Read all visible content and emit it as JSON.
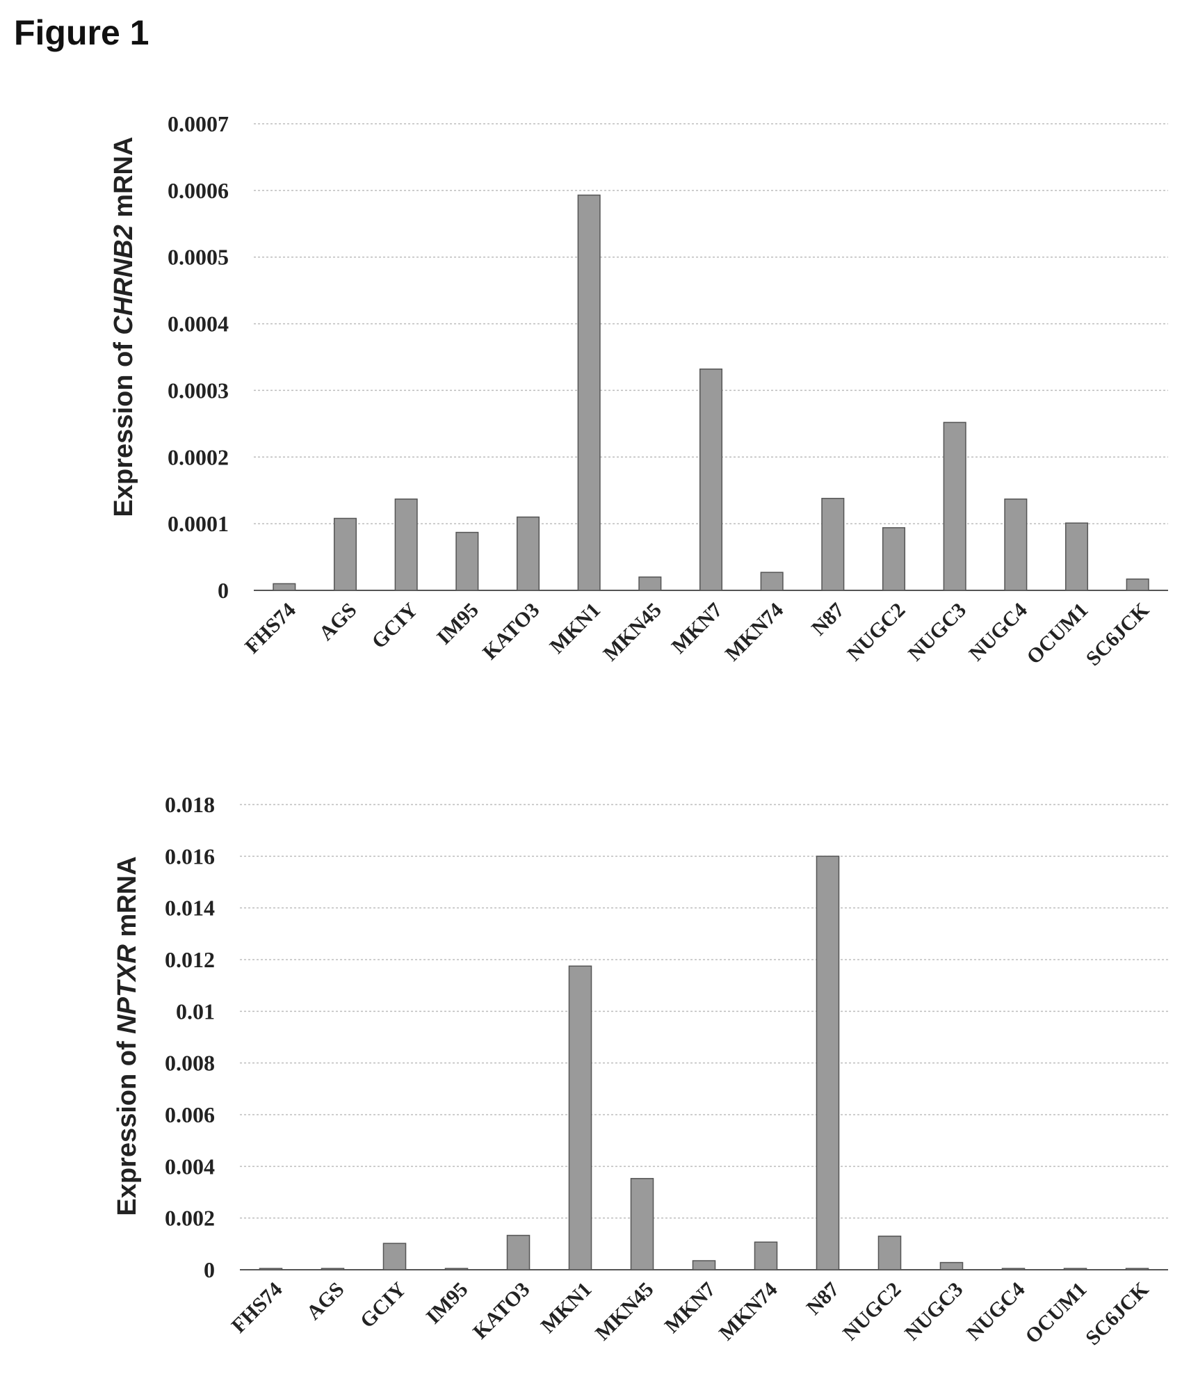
{
  "figure_title": "Figure 1",
  "chart_data": [
    {
      "type": "bar",
      "ylabel_prefix": "Expression of ",
      "ylabel_gene": "CHRNB2",
      "ylabel_suffix": " mRNA",
      "ylim": [
        0,
        0.0007
      ],
      "yticks": [
        "0",
        "0.0001",
        "0.0002",
        "0.0003",
        "0.0004",
        "0.0005",
        "0.0006",
        "0.0007"
      ],
      "grid": true,
      "categories": [
        "FHS74",
        "AGS",
        "GCIY",
        "IM95",
        "KATO3",
        "MKN1",
        "MKN45",
        "MKN7",
        "MKN74",
        "N87",
        "NUGC2",
        "NUGC3",
        "NUGC4",
        "OCUM1",
        "SC6JCK"
      ],
      "values": [
        1e-05,
        0.000108,
        0.000137,
        8.7e-05,
        0.00011,
        0.000593,
        2e-05,
        0.000332,
        2.7e-05,
        0.000138,
        9.4e-05,
        0.000252,
        0.000137,
        0.000101,
        1.7e-05
      ]
    },
    {
      "type": "bar",
      "ylabel_prefix": "Expression of ",
      "ylabel_gene": "NPTXR",
      "ylabel_suffix": " mRNA",
      "ylim": [
        0,
        0.018
      ],
      "yticks": [
        "0",
        "0.002",
        "0.004",
        "0.006",
        "0.008",
        "0.01",
        "0.012",
        "0.014",
        "0.016",
        "0.018"
      ],
      "grid": true,
      "categories": [
        "FHS74",
        "AGS",
        "GCIY",
        "IM95",
        "KATO3",
        "MKN1",
        "MKN45",
        "MKN7",
        "MKN74",
        "N87",
        "NUGC2",
        "NUGC3",
        "NUGC4",
        "OCUM1",
        "SC6JCK"
      ],
      "values": [
        5e-05,
        5e-05,
        0.00102,
        5e-05,
        0.00133,
        0.01175,
        0.00353,
        0.00035,
        0.00107,
        0.016,
        0.0013,
        0.00028,
        5e-05,
        5e-05,
        5e-05
      ]
    }
  ]
}
